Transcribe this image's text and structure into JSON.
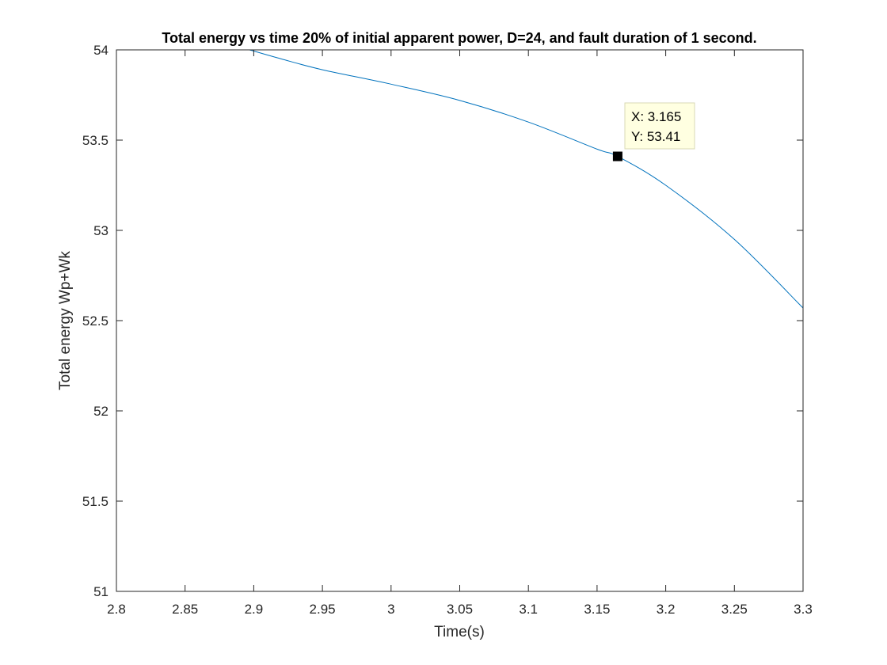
{
  "chart_data": {
    "type": "line",
    "title": "Total energy vs time 20% of initial apparent power,  D=24, and fault duration of 1 second.",
    "xlabel": "Time(s)",
    "ylabel": "Total energy Wp+Wk",
    "xlim": [
      2.8,
      3.3
    ],
    "ylim": [
      51,
      54
    ],
    "xticks": [
      2.8,
      2.85,
      2.9,
      2.95,
      3,
      3.05,
      3.1,
      3.15,
      3.2,
      3.25,
      3.3
    ],
    "xtick_labels": [
      "2.8",
      "2.85",
      "2.9",
      "2.95",
      "3",
      "3.05",
      "3.1",
      "3.15",
      "3.2",
      "3.25",
      "3.3"
    ],
    "yticks": [
      51,
      51.5,
      52,
      52.5,
      53,
      53.5,
      54
    ],
    "ytick_labels": [
      "51",
      "51.5",
      "52",
      "52.5",
      "53",
      "53.5",
      "54"
    ],
    "grid": false,
    "series": [
      {
        "color": "#0072BD",
        "x": [
          2.897,
          2.92,
          2.95,
          3.0,
          3.05,
          3.1,
          3.15,
          3.165,
          3.2,
          3.25,
          3.3
        ],
        "y": [
          54.0,
          53.95,
          53.89,
          53.81,
          53.72,
          53.6,
          53.45,
          53.41,
          53.25,
          52.95,
          52.57
        ]
      }
    ],
    "datatip": {
      "x": 3.165,
      "y": 53.41,
      "x_text": "X: 3.165",
      "y_text": "Y: 53.41"
    }
  }
}
